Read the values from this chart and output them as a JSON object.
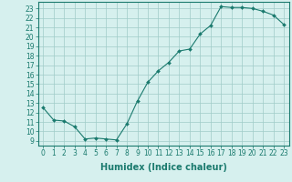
{
  "x": [
    0,
    1,
    2,
    3,
    4,
    5,
    6,
    7,
    8,
    9,
    10,
    11,
    12,
    13,
    14,
    15,
    16,
    17,
    18,
    19,
    20,
    21,
    22,
    23
  ],
  "y": [
    12.5,
    11.2,
    11.1,
    10.5,
    9.2,
    9.3,
    9.2,
    9.1,
    10.8,
    13.2,
    15.2,
    16.4,
    17.3,
    18.5,
    18.7,
    20.3,
    21.2,
    23.2,
    23.1,
    23.1,
    23.0,
    22.7,
    22.3,
    21.3
  ],
  "line_color": "#1a7a6e",
  "marker": "D",
  "marker_size": 2,
  "bg_color": "#d6f0ee",
  "grid_color": "#a0ccc8",
  "xlabel": "Humidex (Indice chaleur)",
  "ylabel": "",
  "title": "",
  "xlim": [
    -0.5,
    23.5
  ],
  "ylim": [
    8.5,
    23.7
  ],
  "yticks": [
    9,
    10,
    11,
    12,
    13,
    14,
    15,
    16,
    17,
    18,
    19,
    20,
    21,
    22,
    23
  ],
  "xticks": [
    0,
    1,
    2,
    3,
    4,
    5,
    6,
    7,
    8,
    9,
    10,
    11,
    12,
    13,
    14,
    15,
    16,
    17,
    18,
    19,
    20,
    21,
    22,
    23
  ],
  "xtick_labels": [
    "0",
    "1",
    "2",
    "3",
    "4",
    "5",
    "6",
    "7",
    "8",
    "9",
    "10",
    "11",
    "12",
    "13",
    "14",
    "15",
    "16",
    "17",
    "18",
    "19",
    "20",
    "21",
    "22",
    "23"
  ],
  "ytick_labels": [
    "9",
    "10",
    "11",
    "12",
    "13",
    "14",
    "15",
    "16",
    "17",
    "18",
    "19",
    "20",
    "21",
    "22",
    "23"
  ],
  "font_size": 5.5,
  "xlabel_fontsize": 7,
  "axis_color": "#1a7a6e"
}
